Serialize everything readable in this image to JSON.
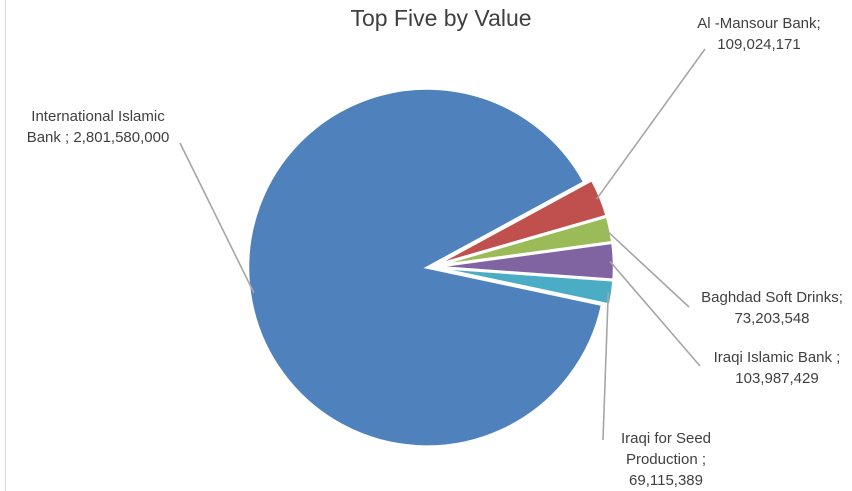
{
  "chart_data": {
    "type": "pie",
    "title": "Top Five by Value",
    "slices": [
      {
        "name": "International Islamic Bank",
        "label_lines": [
          "International Islamic",
          "Bank ; 2,801,580,000"
        ],
        "value": 2801580000,
        "color": "#4f81bd"
      },
      {
        "name": "Al -Mansour Bank",
        "label_lines": [
          "Al -Mansour Bank;",
          "109,024,171"
        ],
        "value": 109024171,
        "color": "#c0504d"
      },
      {
        "name": "Baghdad Soft Drinks",
        "label_lines": [
          "Baghdad Soft Drinks;",
          "73,203,548"
        ],
        "value": 73203548,
        "color": "#9bbb59"
      },
      {
        "name": "Iraqi Islamic Bank",
        "label_lines": [
          "Iraqi Islamic Bank ;",
          "103,987,429"
        ],
        "value": 103987429,
        "color": "#8064a2"
      },
      {
        "name": "Iraqi for Seed Production",
        "label_lines": [
          "Iraqi for Seed",
          "Production ;",
          "69,115,389"
        ],
        "value": 69115389,
        "color": "#4bacc6"
      }
    ],
    "legend": false
  }
}
